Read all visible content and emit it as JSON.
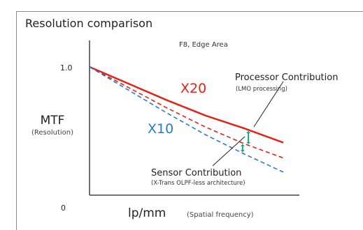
{
  "chart_data": {
    "type": "line",
    "title": "Resolution comparison",
    "subtitle": "F8, Edge Area",
    "ylabel": "MTF",
    "ylabel_sub": "(Resolution)",
    "xlabel": "lp/mm",
    "xlabel_sub": "(Spatial frequency)",
    "y_ticks": [
      "1.0",
      "0"
    ],
    "ylim": [
      0,
      1.15
    ],
    "xlim": [
      0,
      1
    ],
    "series": [
      {
        "name": "X20",
        "color": "#e2231a",
        "style": "solid",
        "x": [
          0,
          0.2,
          0.4,
          0.6,
          0.8,
          1.0
        ],
        "y": [
          1.0,
          0.87,
          0.74,
          0.62,
          0.52,
          0.41
        ]
      },
      {
        "name": "",
        "color": "#e2231a",
        "style": "dashed",
        "x": [
          0,
          0.2,
          0.4,
          0.6,
          0.8,
          1.0
        ],
        "y": [
          1.0,
          0.84,
          0.68,
          0.53,
          0.4,
          0.29
        ]
      },
      {
        "name": "X10",
        "color": "#2b7ac9",
        "style": "dashed",
        "x": [
          0,
          0.2,
          0.4,
          0.6,
          0.8,
          1.0
        ],
        "y": [
          1.0,
          0.82,
          0.64,
          0.47,
          0.32,
          0.18
        ]
      }
    ],
    "annotations": {
      "processor": {
        "label": "Processor Contribution",
        "sub": "(LMO processing)"
      },
      "sensor": {
        "label": "Sensor Contribution",
        "sub": "(X-Trans OLPF-less architecture)"
      },
      "marker_color": "#1aa37a"
    },
    "grid": false,
    "legend": "inline-labels"
  }
}
